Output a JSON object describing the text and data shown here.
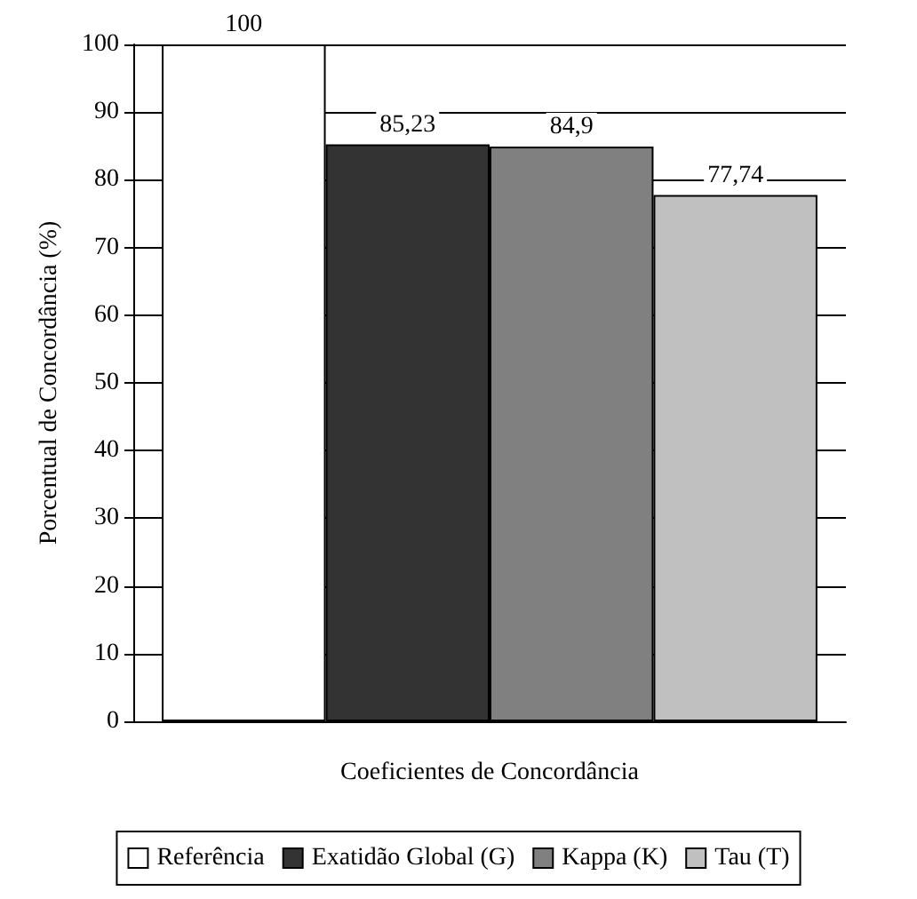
{
  "chart_data": {
    "type": "bar",
    "xlabel": "Coeficientes de Concordância",
    "ylabel": "Porcentual de Concordância (%)",
    "categories": [
      null
    ],
    "series": [
      {
        "name": "Referência",
        "color": "#ffffff",
        "values": [
          100
        ],
        "value_labels": [
          "100"
        ]
      },
      {
        "name": "Exatidão Global (G)",
        "color": "#333333",
        "values": [
          85.23
        ],
        "value_labels": [
          "85,23"
        ]
      },
      {
        "name": "Kappa (K)",
        "color": "#808080",
        "values": [
          84.9
        ],
        "value_labels": [
          "84,9"
        ]
      },
      {
        "name": "Tau (T)",
        "color": "#c0c0c0",
        "values": [
          77.74
        ],
        "value_labels": [
          "77,74"
        ]
      }
    ],
    "ylim": [
      0,
      100
    ],
    "yticks": [
      0,
      10,
      20,
      30,
      40,
      50,
      60,
      70,
      80,
      90,
      100
    ],
    "grid": "y",
    "legend": "bottom"
  }
}
